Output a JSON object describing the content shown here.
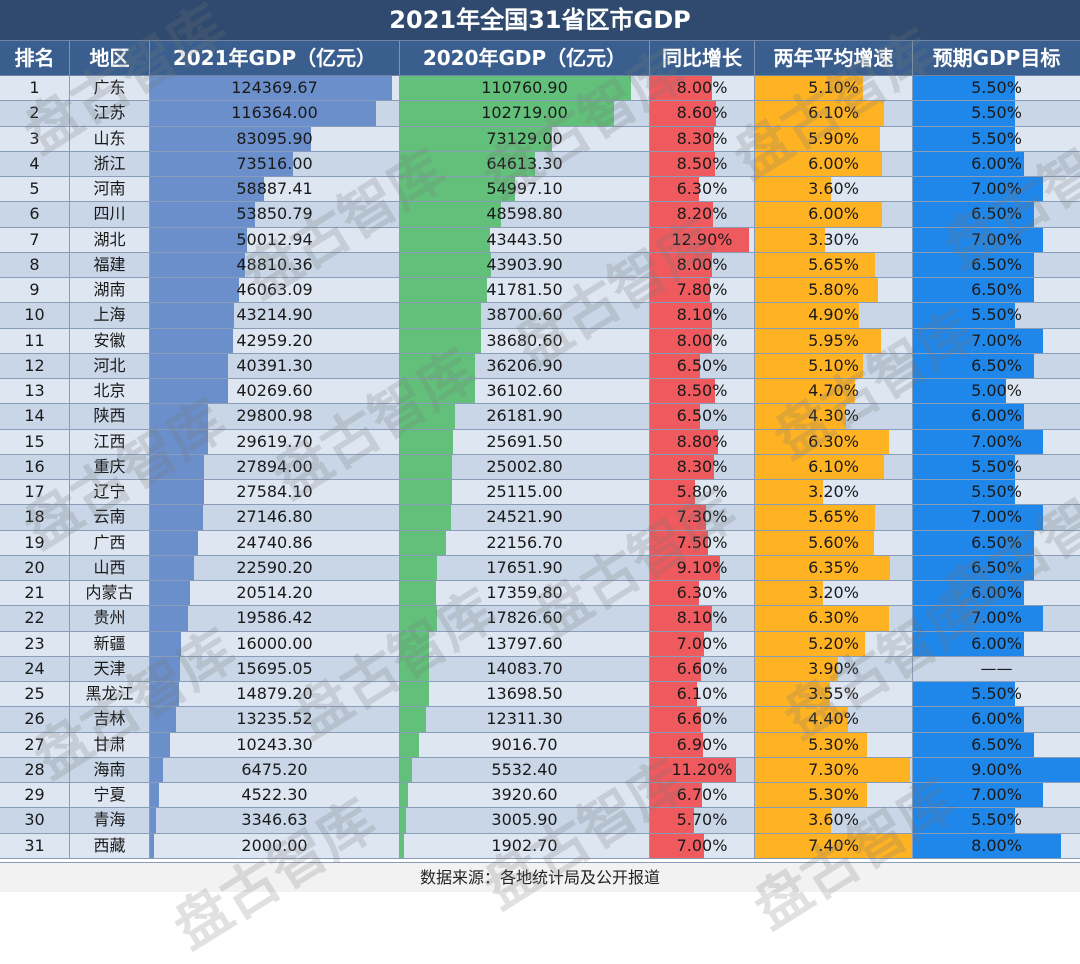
{
  "title": "2021年全国31省区市GDP",
  "source_note": "数据来源：各地统计局及公开报道",
  "watermark": "盘古智库",
  "colors": {
    "gdp2021": "#6a8fcb",
    "gdp2020": "#62c07b",
    "growth": "#ef5a5f",
    "avg": "#ffb323",
    "target": "#1f86ea"
  },
  "chart_data": {
    "type": "table",
    "title": "2021年全国31省区市GDP",
    "columns": [
      "排名",
      "地区",
      "2021年GDP（亿元）",
      "2020年GDP（亿元）",
      "同比增长",
      "两年平均增速",
      "预期GDP目标"
    ],
    "rows": [
      [
        "1",
        "广东",
        "124369.67",
        "110760.90",
        "8.00%",
        "5.10%",
        "5.50%"
      ],
      [
        "2",
        "江苏",
        "116364.00",
        "102719.00",
        "8.60%",
        "6.10%",
        "5.50%"
      ],
      [
        "3",
        "山东",
        "83095.90",
        "73129.00",
        "8.30%",
        "5.90%",
        "5.50%"
      ],
      [
        "4",
        "浙江",
        "73516.00",
        "64613.30",
        "8.50%",
        "6.00%",
        "6.00%"
      ],
      [
        "5",
        "河南",
        "58887.41",
        "54997.10",
        "6.30%",
        "3.60%",
        "7.00%"
      ],
      [
        "6",
        "四川",
        "53850.79",
        "48598.80",
        "8.20%",
        "6.00%",
        "6.50%"
      ],
      [
        "7",
        "湖北",
        "50012.94",
        "43443.50",
        "12.90%",
        "3.30%",
        "7.00%"
      ],
      [
        "8",
        "福建",
        "48810.36",
        "43903.90",
        "8.00%",
        "5.65%",
        "6.50%"
      ],
      [
        "9",
        "湖南",
        "46063.09",
        "41781.50",
        "7.80%",
        "5.80%",
        "6.50%"
      ],
      [
        "10",
        "上海",
        "43214.90",
        "38700.60",
        "8.10%",
        "4.90%",
        "5.50%"
      ],
      [
        "11",
        "安徽",
        "42959.20",
        "38680.60",
        "8.00%",
        "5.95%",
        "7.00%"
      ],
      [
        "12",
        "河北",
        "40391.30",
        "36206.90",
        "6.50%",
        "5.10%",
        "6.50%"
      ],
      [
        "13",
        "北京",
        "40269.60",
        "36102.60",
        "8.50%",
        "4.70%",
        "5.00%"
      ],
      [
        "14",
        "陕西",
        "29800.98",
        "26181.90",
        "6.50%",
        "4.30%",
        "6.00%"
      ],
      [
        "15",
        "江西",
        "29619.70",
        "25691.50",
        "8.80%",
        "6.30%",
        "7.00%"
      ],
      [
        "16",
        "重庆",
        "27894.00",
        "25002.80",
        "8.30%",
        "6.10%",
        "5.50%"
      ],
      [
        "17",
        "辽宁",
        "27584.10",
        "25115.00",
        "5.80%",
        "3.20%",
        "5.50%"
      ],
      [
        "18",
        "云南",
        "27146.80",
        "24521.90",
        "7.30%",
        "5.65%",
        "7.00%"
      ],
      [
        "19",
        "广西",
        "24740.86",
        "22156.70",
        "7.50%",
        "5.60%",
        "6.50%"
      ],
      [
        "20",
        "山西",
        "22590.20",
        "17651.90",
        "9.10%",
        "6.35%",
        "6.50%"
      ],
      [
        "21",
        "内蒙古",
        "20514.20",
        "17359.80",
        "6.30%",
        "3.20%",
        "6.00%"
      ],
      [
        "22",
        "贵州",
        "19586.42",
        "17826.60",
        "8.10%",
        "6.30%",
        "7.00%"
      ],
      [
        "23",
        "新疆",
        "16000.00",
        "13797.60",
        "7.00%",
        "5.20%",
        "6.00%"
      ],
      [
        "24",
        "天津",
        "15695.05",
        "14083.70",
        "6.60%",
        "3.90%",
        "——"
      ],
      [
        "25",
        "黑龙江",
        "14879.20",
        "13698.50",
        "6.10%",
        "3.55%",
        "5.50%"
      ],
      [
        "26",
        "吉林",
        "13235.52",
        "12311.30",
        "6.60%",
        "4.40%",
        "6.00%"
      ],
      [
        "27",
        "甘肃",
        "10243.30",
        "9016.70",
        "6.90%",
        "5.30%",
        "6.50%"
      ],
      [
        "28",
        "海南",
        "6475.20",
        "5532.40",
        "11.20%",
        "7.30%",
        "9.00%"
      ],
      [
        "29",
        "宁夏",
        "4522.30",
        "3920.60",
        "6.70%",
        "5.30%",
        "7.00%"
      ],
      [
        "30",
        "青海",
        "3346.63",
        "3005.90",
        "5.70%",
        "3.60%",
        "5.50%"
      ],
      [
        "31",
        "西藏",
        "2000.00",
        "1902.70",
        "7.00%",
        "7.40%",
        "8.00%"
      ]
    ]
  }
}
